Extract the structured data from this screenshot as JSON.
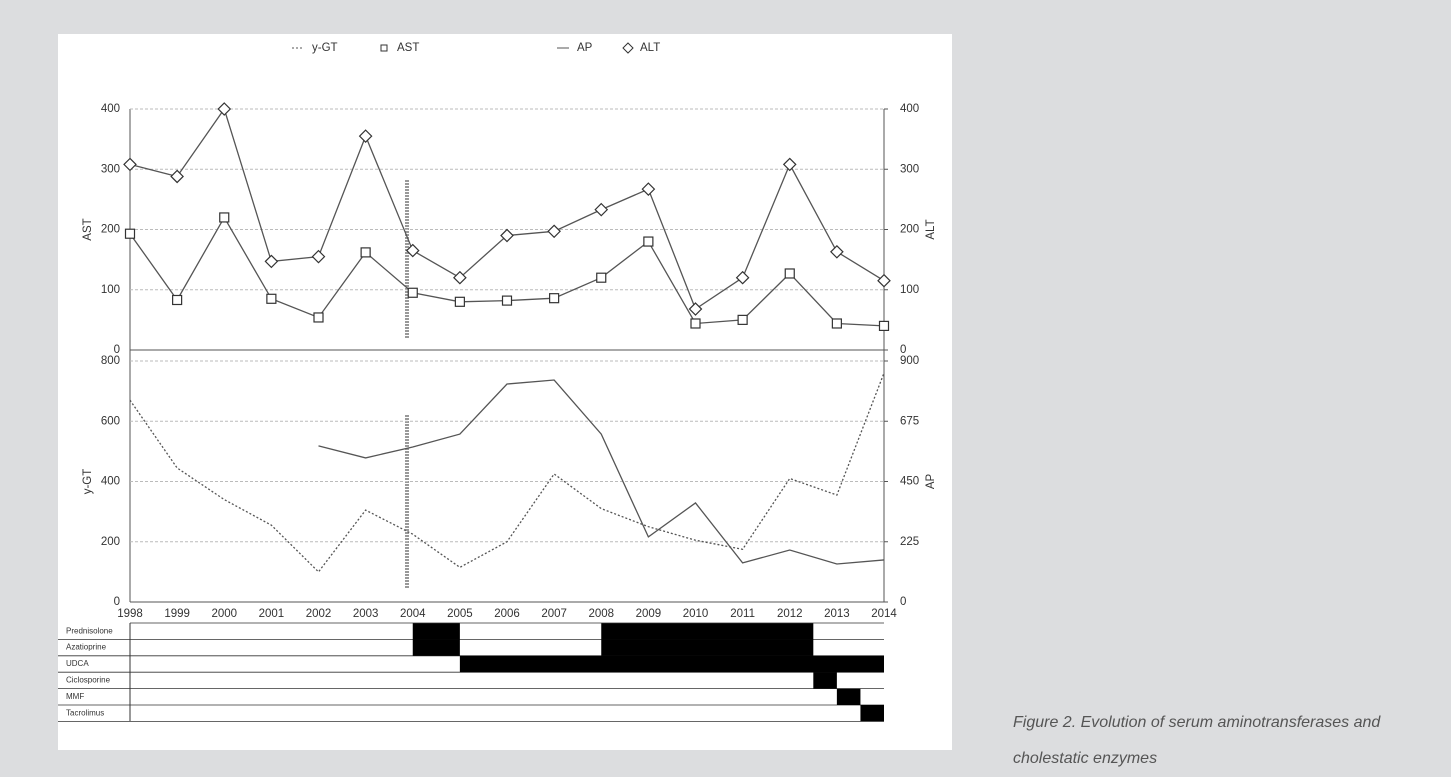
{
  "chart_data": [
    {
      "type": "line",
      "x": [
        1998,
        1999,
        2000,
        2001,
        2002,
        2003,
        2004,
        2005,
        2006,
        2007,
        2008,
        2009,
        2010,
        2011,
        2012,
        2013,
        2014
      ],
      "xlim": [
        1998,
        2014
      ],
      "ylabel": "AST",
      "y2label": "ALT",
      "ylim": [
        0,
        400
      ],
      "yticks": [
        0,
        100,
        200,
        300,
        400
      ],
      "y2lim": [
        0,
        400
      ],
      "y2ticks": [
        0,
        100,
        200,
        300,
        400
      ],
      "grid": true,
      "series": [
        {
          "name": "AST",
          "color": "#555555",
          "marker": "square",
          "style": "solid",
          "values": [
            193,
            83,
            220,
            85,
            54,
            162,
            95,
            80,
            82,
            86,
            120,
            180,
            44,
            50,
            127,
            44,
            40
          ]
        },
        {
          "name": "ALT",
          "color": "#555555",
          "marker": "diamond",
          "style": "solid",
          "axis": "y2",
          "values": [
            308,
            288,
            400,
            147,
            155,
            355,
            165,
            120,
            190,
            197,
            233,
            267,
            68,
            120,
            308,
            163,
            115
          ]
        }
      ]
    },
    {
      "type": "line",
      "x": [
        1998,
        1999,
        2000,
        2001,
        2002,
        2003,
        2004,
        2005,
        2006,
        2007,
        2008,
        2009,
        2010,
        2011,
        2012,
        2013,
        2014
      ],
      "xlim": [
        1998,
        2014
      ],
      "xticks": [
        1998,
        1999,
        2000,
        2001,
        2002,
        2003,
        2004,
        2005,
        2006,
        2007,
        2008,
        2009,
        2010,
        2011,
        2012,
        2013,
        2014
      ],
      "ylabel": "y-GT",
      "y2label": "AP",
      "ylim": [
        0,
        800
      ],
      "yticks": [
        0,
        200,
        400,
        600,
        800
      ],
      "y2lim": [
        0,
        900
      ],
      "y2ticks": [
        0,
        225,
        450,
        675,
        900
      ],
      "grid": true,
      "series": [
        {
          "name": "y-GT",
          "color": "#555555",
          "marker": "none",
          "style": "dotted",
          "values": [
            670,
            445,
            340,
            255,
            100,
            305,
            225,
            115,
            200,
            425,
            310,
            250,
            205,
            175,
            410,
            355,
            760
          ]
        },
        {
          "name": "AP",
          "color": "#555555",
          "marker": "none",
          "style": "solid",
          "axis": "y2",
          "values": [
            null,
            null,
            null,
            null,
            583,
            538,
            579,
            627,
            814,
            829,
            627,
            243,
            370,
            146,
            194,
            142,
            157
          ]
        }
      ]
    }
  ],
  "treatments": [
    {
      "name": "Prednisolone",
      "periods": [
        [
          2004,
          2005
        ],
        [
          2008,
          2012.5
        ]
      ]
    },
    {
      "name": "Azatioprine",
      "periods": [
        [
          2004,
          2005
        ],
        [
          2008,
          2012.5
        ]
      ]
    },
    {
      "name": "UDCA",
      "periods": [
        [
          2005,
          2014
        ]
      ]
    },
    {
      "name": "Ciclosporine",
      "periods": [
        [
          2012.5,
          2013
        ]
      ]
    },
    {
      "name": "MMF",
      "periods": [
        [
          2013,
          2013.5
        ]
      ]
    },
    {
      "name": "Tacrolimus",
      "periods": [
        [
          2013.5,
          2014
        ]
      ]
    }
  ],
  "caption": "Figure 2. Evolution of serum aminotransferases and cholestatic enzymes"
}
